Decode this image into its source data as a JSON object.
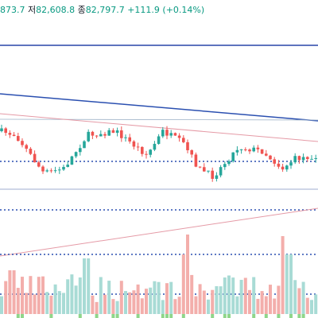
{
  "header": {
    "items": [
      {
        "text": "873.7",
        "kind": "value"
      },
      {
        "text": "저",
        "kind": "label"
      },
      {
        "text": "82,608.8",
        "kind": "value"
      },
      {
        "text": "종",
        "kind": "label"
      },
      {
        "text": "82,797.7",
        "kind": "value"
      },
      {
        "text": "+111.9 (+0.14%)",
        "kind": "value"
      }
    ]
  }
}
